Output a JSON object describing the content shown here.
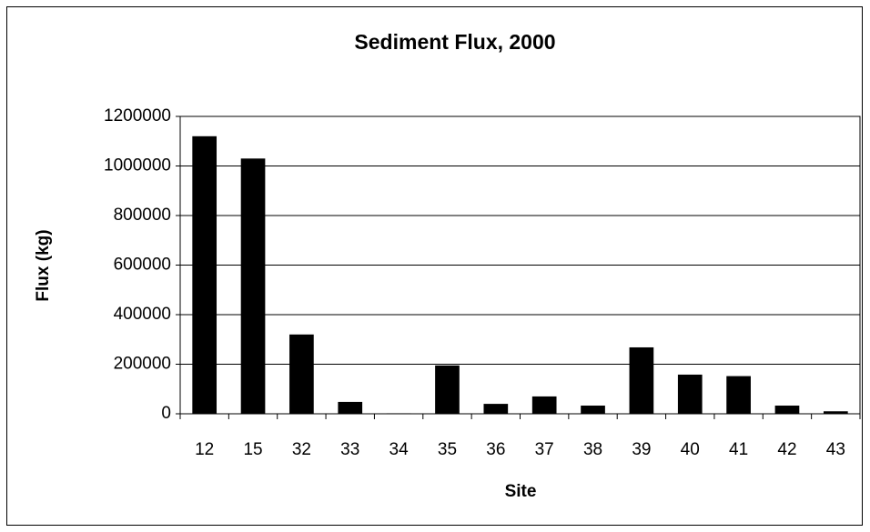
{
  "chart_data": {
    "type": "bar",
    "title": "Sediment Flux, 2000",
    "x_label": "Site",
    "y_label": "Flux (kg)",
    "categories": [
      "12",
      "15",
      "32",
      "33",
      "34",
      "35",
      "36",
      "37",
      "38",
      "39",
      "40",
      "41",
      "42",
      "43"
    ],
    "values": [
      1120000,
      1030000,
      320000,
      48000,
      2000,
      195000,
      40000,
      70000,
      33000,
      268000,
      158000,
      152000,
      33000,
      10000
    ],
    "color": "#000000",
    "ylim": [
      0,
      1200000
    ],
    "yticks": [
      0,
      200000,
      400000,
      600000,
      800000,
      1000000,
      1200000
    ],
    "grid": true
  }
}
